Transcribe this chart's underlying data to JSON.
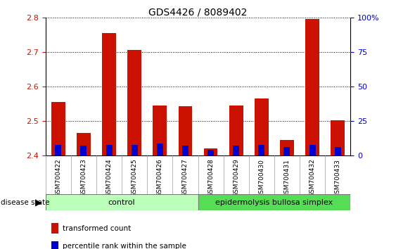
{
  "title": "GDS4426 / 8089402",
  "samples": [
    "GSM700422",
    "GSM700423",
    "GSM700424",
    "GSM700425",
    "GSM700426",
    "GSM700427",
    "GSM700428",
    "GSM700429",
    "GSM700430",
    "GSM700431",
    "GSM700432",
    "GSM700433"
  ],
  "red_values": [
    2.555,
    2.465,
    2.755,
    2.705,
    2.545,
    2.543,
    2.42,
    2.545,
    2.565,
    2.445,
    2.795,
    2.503
  ],
  "blue_percentile": [
    8,
    7,
    8,
    8,
    9,
    7,
    4,
    7,
    8,
    6,
    8,
    6
  ],
  "ylim_left": [
    2.4,
    2.8
  ],
  "ylim_right": [
    0,
    100
  ],
  "yticks_left": [
    2.4,
    2.5,
    2.6,
    2.7,
    2.8
  ],
  "yticks_right": [
    0,
    25,
    50,
    75,
    100
  ],
  "control_label": "control",
  "disease_label": "epidermolysis bullosa simplex",
  "disease_state_label": "disease state",
  "legend_red": "transformed count",
  "legend_blue": "percentile rank within the sample",
  "bar_color_red": "#CC1100",
  "bar_color_blue": "#0000CC",
  "control_bg": "#BBFFBB",
  "disease_bg": "#55DD55",
  "tick_bg": "#CCCCCC",
  "base": 2.4,
  "bar_width": 0.55,
  "n_control": 6,
  "n_disease": 6
}
